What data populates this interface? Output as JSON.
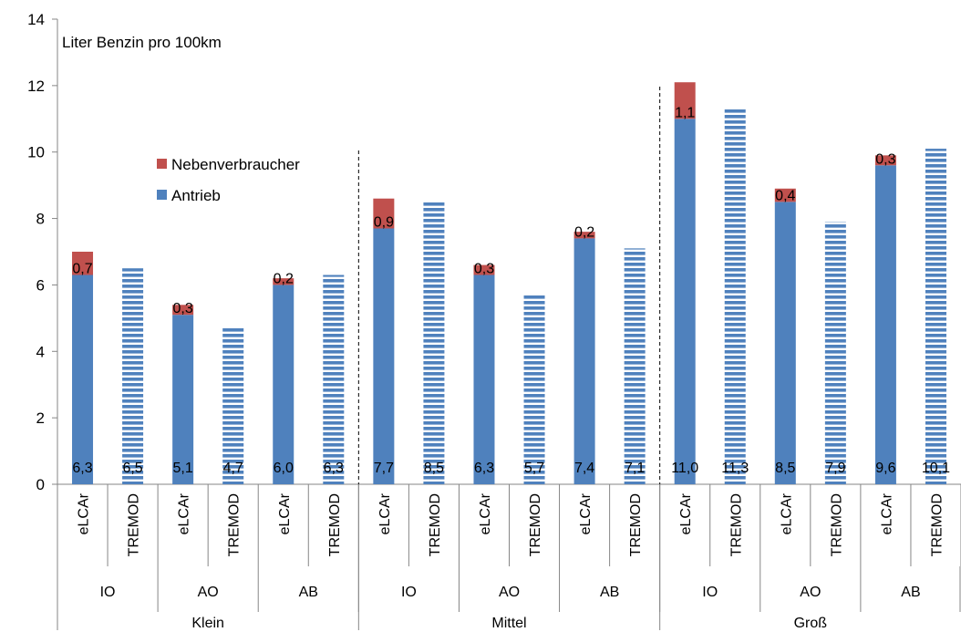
{
  "chart_data": {
    "type": "bar",
    "stacked": true,
    "annotation": "Liter Benzin pro 100km",
    "ylim": [
      0,
      14
    ],
    "y_ticks": [
      "0",
      "2",
      "4",
      "6",
      "8",
      "10",
      "12",
      "14"
    ],
    "legend": {
      "placement": "upper-left inside plot",
      "items": [
        {
          "label": "Nebenverbraucher",
          "color": "#c0504d"
        },
        {
          "label": "Antrieb",
          "color": "#4f81bd"
        }
      ]
    },
    "groups": [
      "Klein",
      "Mittel",
      "Groß"
    ],
    "subgroups": [
      "IO",
      "AO",
      "AB"
    ],
    "categories": [
      "eLCAr",
      "TREMOD",
      "eLCAr",
      "TREMOD",
      "eLCAr",
      "TREMOD",
      "eLCAr",
      "TREMOD",
      "eLCAr",
      "TREMOD",
      "eLCAr",
      "TREMOD",
      "eLCAr",
      "TREMOD",
      "eLCAr",
      "TREMOD",
      "eLCAr",
      "TREMOD"
    ],
    "series": [
      {
        "name": "Antrieb",
        "color": "#4f81bd",
        "values": [
          6.3,
          6.5,
          5.1,
          4.7,
          6.0,
          6.3,
          7.7,
          8.5,
          6.3,
          5.7,
          7.4,
          7.1,
          11.0,
          11.3,
          8.5,
          7.9,
          9.6,
          10.1
        ],
        "labels": [
          "6,3",
          "6,5",
          "5,1",
          "4,7",
          "6,0",
          "6,3",
          "7,7",
          "8,5",
          "6,3",
          "5,7",
          "7,4",
          "7,1",
          "11,0",
          "11,3",
          "8,5",
          "7,9",
          "9,6",
          "10,1"
        ]
      },
      {
        "name": "Nebenverbraucher",
        "color": "#c0504d",
        "values": [
          0.7,
          null,
          0.3,
          null,
          0.2,
          null,
          0.9,
          null,
          0.3,
          null,
          0.2,
          null,
          1.1,
          null,
          0.4,
          null,
          0.3,
          null
        ],
        "labels": [
          "0,7",
          "",
          "0,3",
          "",
          "0,2",
          "",
          "0,9",
          "",
          "0,3",
          "",
          "0,2",
          "",
          "1,1",
          "",
          "0,4",
          "",
          "0,3",
          ""
        ]
      }
    ],
    "tremod_pattern": "horizontal white stripes on blue"
  }
}
